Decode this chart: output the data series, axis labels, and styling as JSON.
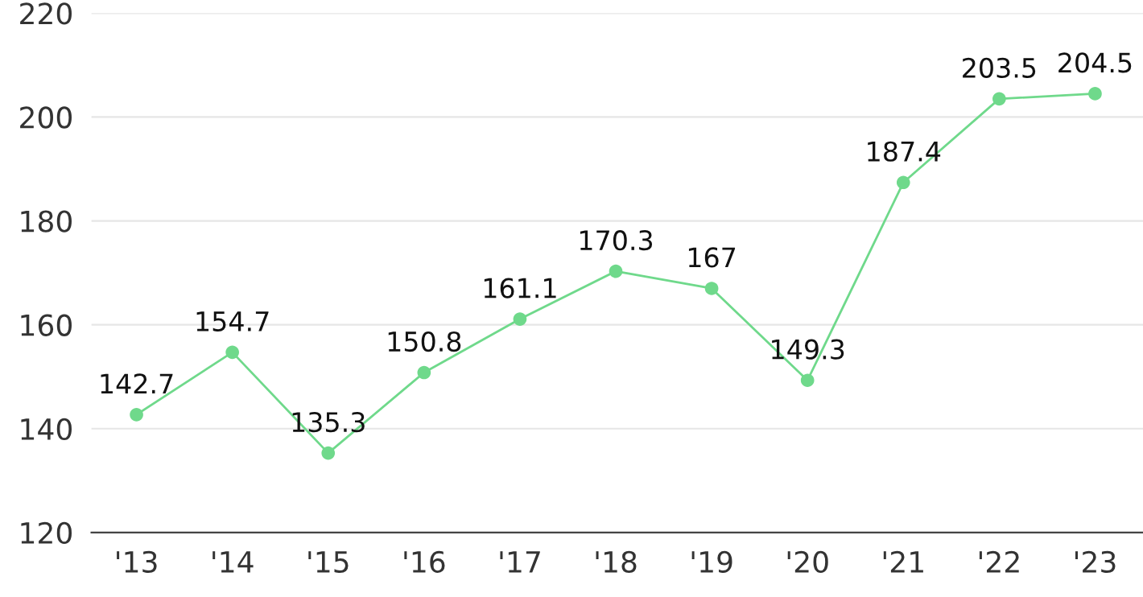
{
  "chart_data": {
    "type": "line",
    "categories": [
      "'13",
      "'14",
      "'15",
      "'16",
      "'17",
      "'18",
      "'19",
      "'20",
      "'21",
      "'22",
      "'23"
    ],
    "series": [
      {
        "color": "#6fd98b",
        "values": [
          142.7,
          154.7,
          135.3,
          150.8,
          161.1,
          170.3,
          167,
          149.3,
          187.4,
          203.5,
          204.5
        ]
      }
    ],
    "ylim": [
      120,
      220
    ],
    "yticks": [
      120,
      140,
      160,
      180,
      200,
      220
    ],
    "grid": "y",
    "marker": "circle",
    "line_style": "solid",
    "data_labels": true
  }
}
